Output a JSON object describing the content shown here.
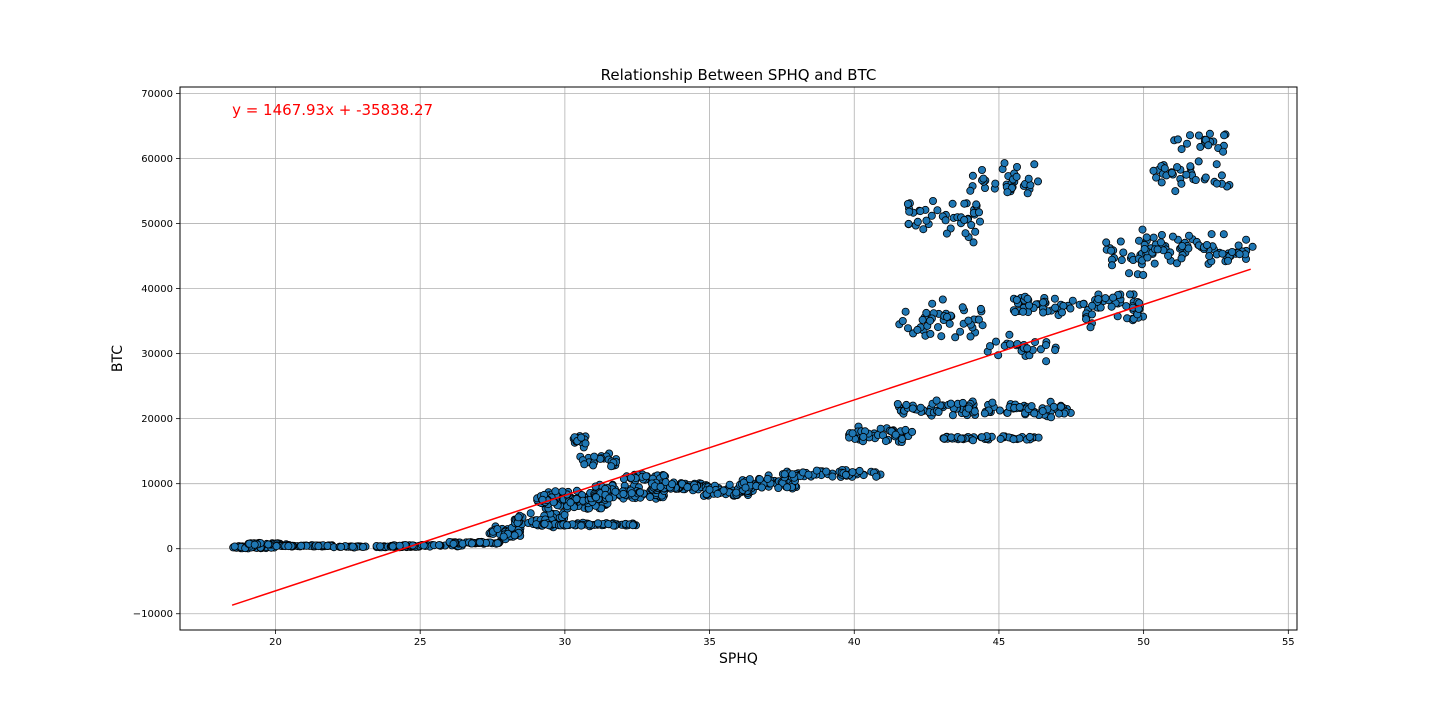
{
  "chart_data": {
    "type": "scatter",
    "title": "Relationship Between SPHQ and BTC",
    "xlabel": "SPHQ",
    "ylabel": "BTC",
    "xlim": [
      16.7,
      55.3
    ],
    "ylim": [
      -12500,
      71000
    ],
    "xticks": [
      20,
      25,
      30,
      35,
      40,
      45,
      50,
      55
    ],
    "xtick_labels": [
      "20",
      "25",
      "30",
      "35",
      "40",
      "45",
      "50",
      "55"
    ],
    "yticks": [
      -10000,
      0,
      10000,
      20000,
      30000,
      40000,
      50000,
      60000,
      70000
    ],
    "ytick_labels": [
      "−10000",
      "0",
      "10000",
      "20000",
      "30000",
      "40000",
      "50000",
      "60000",
      "70000"
    ],
    "grid": true,
    "point_color": "#1f77b4",
    "point_edge_color": "#000000",
    "annotation": {
      "text": "y = 1467.93x + -35838.27",
      "x": 18.5,
      "y": 67500,
      "color": "#ff0000"
    },
    "regression": {
      "slope": 1467.93,
      "intercept": -35838.27,
      "x_range": [
        18.5,
        53.7
      ],
      "color": "#ff0000"
    },
    "scatter_clusters": [
      {
        "x_range": [
          18.4,
          20.0
        ],
        "y_center": 200,
        "y_spread": 300,
        "count": 40
      },
      {
        "x_range": [
          19.0,
          20.5
        ],
        "y_center": 700,
        "y_spread": 300,
        "count": 30
      },
      {
        "x_range": [
          20.0,
          22.0
        ],
        "y_center": 450,
        "y_spread": 150,
        "count": 50
      },
      {
        "x_range": [
          22.0,
          25.0
        ],
        "y_center": 300,
        "y_spread": 150,
        "count": 55
      },
      {
        "x_range": [
          24.0,
          26.5
        ],
        "y_center": 500,
        "y_spread": 200,
        "count": 45
      },
      {
        "x_range": [
          26.0,
          27.8
        ],
        "y_center": 900,
        "y_spread": 250,
        "count": 45
      },
      {
        "x_range": [
          27.3,
          28.5
        ],
        "y_center": 2500,
        "y_spread": 1200,
        "count": 40
      },
      {
        "x_range": [
          28.2,
          30.0
        ],
        "y_center": 4500,
        "y_spread": 1500,
        "count": 60
      },
      {
        "x_range": [
          29.0,
          31.5
        ],
        "y_center": 7500,
        "y_spread": 1800,
        "count": 150
      },
      {
        "x_range": [
          29.0,
          32.5
        ],
        "y_center": 3700,
        "y_spread": 350,
        "count": 70
      },
      {
        "x_range": [
          30.3,
          30.8
        ],
        "y_center": 16500,
        "y_spread": 1500,
        "count": 18
      },
      {
        "x_range": [
          30.5,
          31.8
        ],
        "y_center": 13500,
        "y_spread": 1500,
        "count": 22
      },
      {
        "x_range": [
          31.0,
          33.5
        ],
        "y_center": 8500,
        "y_spread": 1800,
        "count": 110
      },
      {
        "x_range": [
          32.0,
          33.5
        ],
        "y_center": 11000,
        "y_spread": 800,
        "count": 30
      },
      {
        "x_range": [
          33.0,
          35.0
        ],
        "y_center": 9600,
        "y_spread": 900,
        "count": 70
      },
      {
        "x_range": [
          34.8,
          36.5
        ],
        "y_center": 8800,
        "y_spread": 1200,
        "count": 55
      },
      {
        "x_range": [
          36.0,
          38.0
        ],
        "y_center": 10000,
        "y_spread": 1500,
        "count": 50
      },
      {
        "x_range": [
          37.5,
          41.0
        ],
        "y_center": 11500,
        "y_spread": 800,
        "count": 60
      },
      {
        "x_range": [
          39.8,
          42.0
        ],
        "y_center": 17500,
        "y_spread": 1800,
        "count": 45
      },
      {
        "x_range": [
          41.5,
          47.5
        ],
        "y_center": 21500,
        "y_spread": 1800,
        "count": 110
      },
      {
        "x_range": [
          43.0,
          46.5
        ],
        "y_center": 17000,
        "y_spread": 500,
        "count": 45
      },
      {
        "x_range": [
          41.5,
          44.5
        ],
        "y_center": 35000,
        "y_spread": 4500,
        "count": 45
      },
      {
        "x_range": [
          41.8,
          44.5
        ],
        "y_center": 51000,
        "y_spread": 5000,
        "count": 45
      },
      {
        "x_range": [
          44.0,
          46.5
        ],
        "y_center": 56500,
        "y_spread": 3500,
        "count": 35
      },
      {
        "x_range": [
          44.5,
          47.0
        ],
        "y_center": 31000,
        "y_spread": 2500,
        "count": 25
      },
      {
        "x_range": [
          45.5,
          48.5
        ],
        "y_center": 37500,
        "y_spread": 2500,
        "count": 50
      },
      {
        "x_range": [
          48.0,
          50.0
        ],
        "y_center": 37000,
        "y_spread": 4000,
        "count": 50
      },
      {
        "x_range": [
          48.5,
          50.0
        ],
        "y_center": 45000,
        "y_spread": 5000,
        "count": 25
      },
      {
        "x_range": [
          50.0,
          53.8
        ],
        "y_center": 46000,
        "y_spread": 3000,
        "count": 75
      },
      {
        "x_range": [
          50.3,
          53.0
        ],
        "y_center": 57500,
        "y_spread": 3500,
        "count": 35
      },
      {
        "x_range": [
          51.0,
          53.0
        ],
        "y_center": 62500,
        "y_spread": 2500,
        "count": 20
      }
    ]
  }
}
